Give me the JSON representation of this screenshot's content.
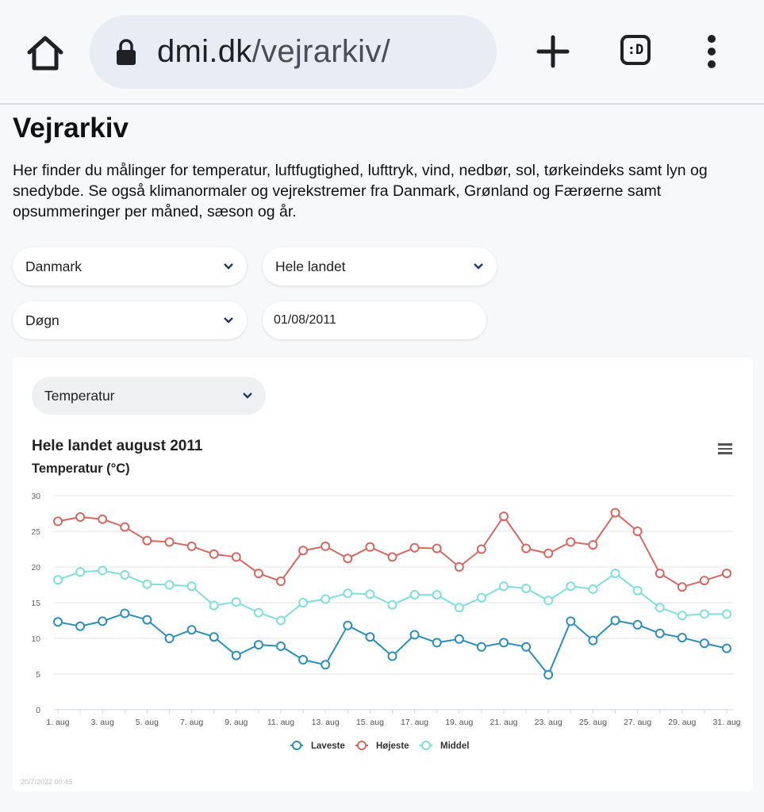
{
  "browser": {
    "url_host": "dmi.dk",
    "url_path": "/vejrarkiv/",
    "tab_label": ":D"
  },
  "page": {
    "title": "Vejrarkiv",
    "intro": "Her finder du målinger for temperatur, luftfugtighed, lufttryk, vind, nedbør, sol, tørkeindeks samt lyn og snedybde. Se også klimanormaler og vejrekstremer fra Danmark, Grønland og Færøerne samt opsummeringer per måned, sæson og år."
  },
  "filters": {
    "country": "Danmark",
    "region": "Hele landet",
    "period": "Døgn",
    "date": "01/08/2011"
  },
  "chart_card": {
    "parameter": "Temperatur",
    "credit": "20/7/2022 00:45"
  },
  "colors": {
    "lowest": "#2a8fba",
    "highest": "#d9675f",
    "mean": "#7ee0dc"
  },
  "chart_data": {
    "type": "line",
    "title": "Hele landet august 2011",
    "subtitle": "Temperatur (°C)",
    "ylim": [
      0,
      30
    ],
    "yticks": [
      0,
      5,
      10,
      15,
      20,
      25,
      30
    ],
    "x": [
      1,
      2,
      3,
      4,
      5,
      6,
      7,
      8,
      9,
      10,
      11,
      12,
      13,
      14,
      15,
      16,
      17,
      18,
      19,
      20,
      21,
      22,
      23,
      24,
      25,
      26,
      27,
      28,
      29,
      30,
      31
    ],
    "xtick_labels": [
      "1. aug",
      "3. aug",
      "5. aug",
      "7. aug",
      "9. aug",
      "11. aug",
      "13. aug",
      "15. aug",
      "17. aug",
      "19. aug",
      "21. aug",
      "23. aug",
      "25. aug",
      "27. aug",
      "29. aug",
      "31. aug"
    ],
    "grid": true,
    "legend_position": "bottom-center",
    "series": [
      {
        "name": "Laveste",
        "color_key": "lowest",
        "values": [
          12.3,
          11.7,
          12.4,
          13.5,
          12.6,
          10.0,
          11.2,
          10.2,
          7.6,
          9.1,
          8.9,
          7.0,
          6.3,
          11.8,
          10.2,
          7.5,
          10.5,
          9.4,
          9.9,
          8.8,
          9.4,
          8.8,
          4.9,
          12.4,
          9.7,
          12.5,
          11.9,
          10.7,
          10.1,
          9.3,
          8.6
        ]
      },
      {
        "name": "Højeste",
        "color_key": "highest",
        "values": [
          26.4,
          27.0,
          26.7,
          25.6,
          23.7,
          23.5,
          22.9,
          21.8,
          21.4,
          19.1,
          18.0,
          22.3,
          22.9,
          21.2,
          22.8,
          21.4,
          22.7,
          22.6,
          20.0,
          22.5,
          27.1,
          22.6,
          21.9,
          23.5,
          23.1,
          27.6,
          25.0,
          19.1,
          17.2,
          18.1,
          19.1
        ]
      },
      {
        "name": "Middel",
        "color_key": "mean",
        "values": [
          18.2,
          19.3,
          19.5,
          18.9,
          17.6,
          17.5,
          17.3,
          14.6,
          15.1,
          13.6,
          12.5,
          15.0,
          15.5,
          16.3,
          16.2,
          14.7,
          16.1,
          16.1,
          14.3,
          15.7,
          17.3,
          17.0,
          15.3,
          17.3,
          16.9,
          19.1,
          16.7,
          14.3,
          13.2,
          13.4,
          13.4
        ]
      }
    ]
  }
}
